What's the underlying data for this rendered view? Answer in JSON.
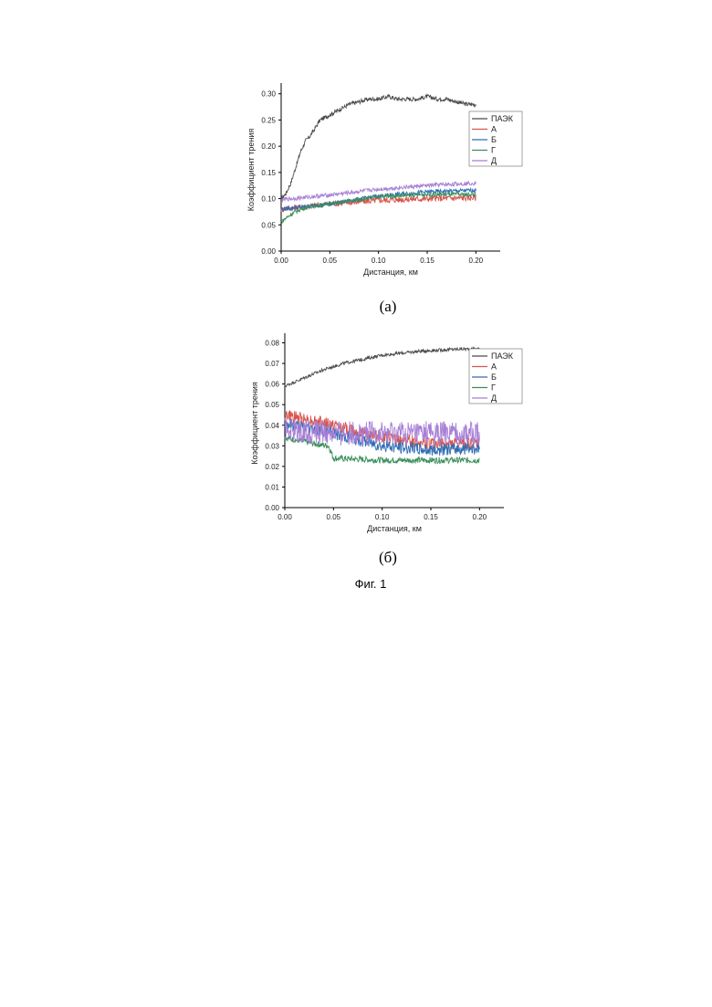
{
  "figure": {
    "caption": "Фиг. 1",
    "panels": [
      {
        "label": "(a)"
      },
      {
        "label": "(б)"
      }
    ]
  },
  "chart_data": [
    {
      "type": "line",
      "xlabel": "Дистанция, км",
      "ylabel": "Коэффициент трения",
      "xlim": [
        0,
        0.225
      ],
      "ylim": [
        0,
        0.31
      ],
      "xticks": [
        "0.00",
        "0.05",
        "0.10",
        "0.15",
        "0.20"
      ],
      "yticks": [
        "0.00",
        "0.05",
        "0.10",
        "0.15",
        "0.20",
        "0.25",
        "0.30"
      ],
      "legend_position": "right",
      "series": [
        {
          "name": "ПАЭК",
          "color": "#4a4a4a",
          "noise": 0.004,
          "x": [
            0,
            0.005,
            0.01,
            0.015,
            0.02,
            0.025,
            0.03,
            0.04,
            0.05,
            0.06,
            0.07,
            0.08,
            0.09,
            0.1,
            0.11,
            0.12,
            0.13,
            0.14,
            0.15,
            0.16,
            0.17,
            0.18,
            0.19,
            0.2
          ],
          "y": [
            0.1,
            0.11,
            0.13,
            0.16,
            0.19,
            0.21,
            0.22,
            0.25,
            0.26,
            0.27,
            0.28,
            0.285,
            0.29,
            0.29,
            0.295,
            0.29,
            0.29,
            0.29,
            0.295,
            0.29,
            0.29,
            0.285,
            0.28,
            0.28
          ]
        },
        {
          "name": "А",
          "color": "#d9534a",
          "noise": 0.006,
          "x": [
            0,
            0.05,
            0.1,
            0.15,
            0.2
          ],
          "y": [
            0.08,
            0.09,
            0.097,
            0.1,
            0.102
          ]
        },
        {
          "name": "Б",
          "color": "#2e6db4",
          "noise": 0.004,
          "x": [
            0,
            0.05,
            0.1,
            0.15,
            0.2
          ],
          "y": [
            0.08,
            0.09,
            0.105,
            0.113,
            0.116
          ]
        },
        {
          "name": "Г",
          "color": "#3a8f5c",
          "noise": 0.004,
          "x": [
            0,
            0.005,
            0.01,
            0.02,
            0.03,
            0.05,
            0.1,
            0.15,
            0.2
          ],
          "y": [
            0.055,
            0.063,
            0.07,
            0.08,
            0.085,
            0.09,
            0.104,
            0.108,
            0.108
          ]
        },
        {
          "name": "Д",
          "color": "#a77fd6",
          "noise": 0.004,
          "x": [
            0,
            0.05,
            0.1,
            0.15,
            0.2
          ],
          "y": [
            0.098,
            0.107,
            0.118,
            0.125,
            0.13
          ]
        }
      ]
    },
    {
      "type": "line",
      "xlabel": "Дистанция, км",
      "ylabel": "Коэффициент трения",
      "xlim": [
        0,
        0.225
      ],
      "ylim": [
        0,
        0.082
      ],
      "xticks": [
        "0.00",
        "0.05",
        "0.10",
        "0.15",
        "0.20"
      ],
      "yticks": [
        "0.00",
        "0.01",
        "0.02",
        "0.03",
        "0.04",
        "0.05",
        "0.06",
        "0.07",
        "0.08"
      ],
      "legend_position": "right",
      "series": [
        {
          "name": "ПАЭК",
          "color": "#4a4a4a",
          "noise": 0.0008,
          "x": [
            0,
            0.01,
            0.02,
            0.04,
            0.06,
            0.08,
            0.1,
            0.12,
            0.14,
            0.16,
            0.18,
            0.2
          ],
          "y": [
            0.059,
            0.061,
            0.063,
            0.067,
            0.07,
            0.072,
            0.074,
            0.075,
            0.076,
            0.0765,
            0.077,
            0.077
          ]
        },
        {
          "name": "А",
          "color": "#d9534a",
          "noise": 0.003,
          "x": [
            0,
            0.05,
            0.1,
            0.15,
            0.2
          ],
          "y": [
            0.045,
            0.04,
            0.034,
            0.031,
            0.031
          ]
        },
        {
          "name": "Б",
          "color": "#2e6db4",
          "noise": 0.003,
          "x": [
            0,
            0.05,
            0.1,
            0.15,
            0.2
          ],
          "y": [
            0.041,
            0.036,
            0.03,
            0.028,
            0.029
          ]
        },
        {
          "name": "Г",
          "color": "#3a8f5c",
          "noise": 0.0015,
          "x": [
            0,
            0.03,
            0.045,
            0.05,
            0.1,
            0.15,
            0.2
          ],
          "y": [
            0.034,
            0.031,
            0.03,
            0.024,
            0.023,
            0.023,
            0.023
          ]
        },
        {
          "name": "Д",
          "color": "#a77fd6",
          "noise": 0.006,
          "x": [
            0,
            0.05,
            0.1,
            0.15,
            0.2
          ],
          "y": [
            0.038,
            0.036,
            0.036,
            0.036,
            0.036
          ]
        }
      ]
    }
  ]
}
